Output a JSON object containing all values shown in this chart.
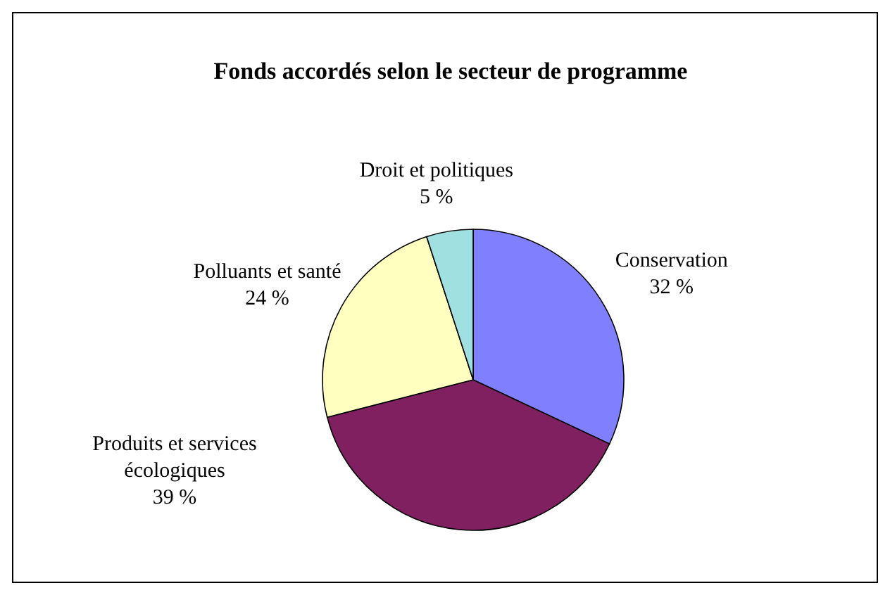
{
  "chart_data": {
    "type": "pie",
    "title": "Fonds accordés selon le secteur de programme",
    "categories": [
      "Conservation",
      "Produits et services écologiques",
      "Polluants et santé",
      "Droit et politiques"
    ],
    "values": [
      32,
      39,
      24,
      5
    ],
    "value_labels": [
      "32 %",
      "39 %",
      "24 %",
      "5 %"
    ],
    "colors": [
      "#8080ff",
      "#802060",
      "#ffffc0",
      "#a0e0e0"
    ],
    "legend": false
  }
}
